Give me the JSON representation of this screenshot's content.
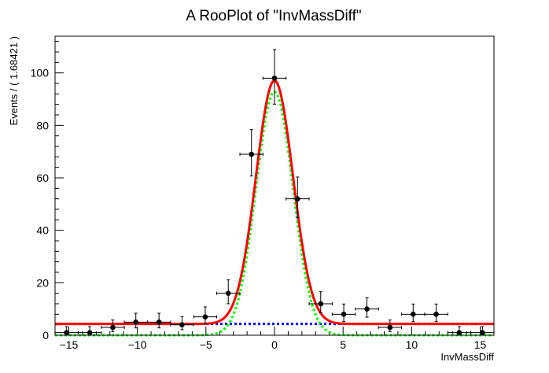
{
  "chart_data": {
    "type": "scatter",
    "title": "A RooPlot of \"InvMassDiff\"",
    "xlabel": "InvMassDiff",
    "ylabel": "Events / ( 1.68421 )",
    "xlim": [
      -16,
      16
    ],
    "ylim": [
      0,
      114
    ],
    "xticks": [
      -15,
      -10,
      -5,
      0,
      5,
      10,
      15
    ],
    "yticks": [
      0,
      20,
      40,
      60,
      80,
      100
    ],
    "x_tick_labels": [
      "−15",
      "−10",
      "−5",
      "0",
      "5",
      "10",
      "15"
    ],
    "y_tick_labels": [
      "0",
      "20",
      "40",
      "60",
      "80",
      "100"
    ],
    "bin_width": 1.68421,
    "grid": false,
    "legend": null,
    "series": [
      {
        "kind": "data-points",
        "color": "#000000",
        "x": [
          -15.16,
          -13.47,
          -11.79,
          -10.11,
          -8.42,
          -6.74,
          -5.05,
          -3.37,
          -1.68,
          0.0,
          1.68,
          3.37,
          5.05,
          6.74,
          8.42,
          10.11,
          11.79,
          13.47,
          15.16
        ],
        "y": [
          1,
          1,
          3,
          5,
          5,
          4,
          7,
          16,
          69,
          98,
          52,
          12,
          8,
          10,
          3,
          8,
          8,
          1,
          1
        ],
        "y_err_high": [
          2.3,
          2.3,
          2.8,
          3.4,
          3.4,
          3.1,
          3.8,
          5.1,
          9.4,
          10.9,
          8.3,
          4.6,
          3.9,
          4.3,
          2.8,
          3.9,
          3.9,
          2.3,
          2.3
        ],
        "y_err_low": [
          0.8,
          0.8,
          1.6,
          2.2,
          2.2,
          1.9,
          2.6,
          4.0,
          8.3,
          9.9,
          7.2,
          3.4,
          2.8,
          3.1,
          1.6,
          2.8,
          2.8,
          0.8,
          0.8
        ]
      },
      {
        "kind": "total-fit",
        "color": "#ff0000",
        "style": "solid",
        "background": 4.3,
        "amplitude": 92.8,
        "mean": 0.0,
        "sigma": 1.35
      },
      {
        "kind": "signal-component",
        "color": "#00ff00",
        "style": "dotted",
        "amplitude": 92.8,
        "mean": 0.0,
        "sigma": 1.35
      },
      {
        "kind": "background-component",
        "color": "#0000ff",
        "style": "dotted",
        "level": 4.3
      }
    ]
  }
}
